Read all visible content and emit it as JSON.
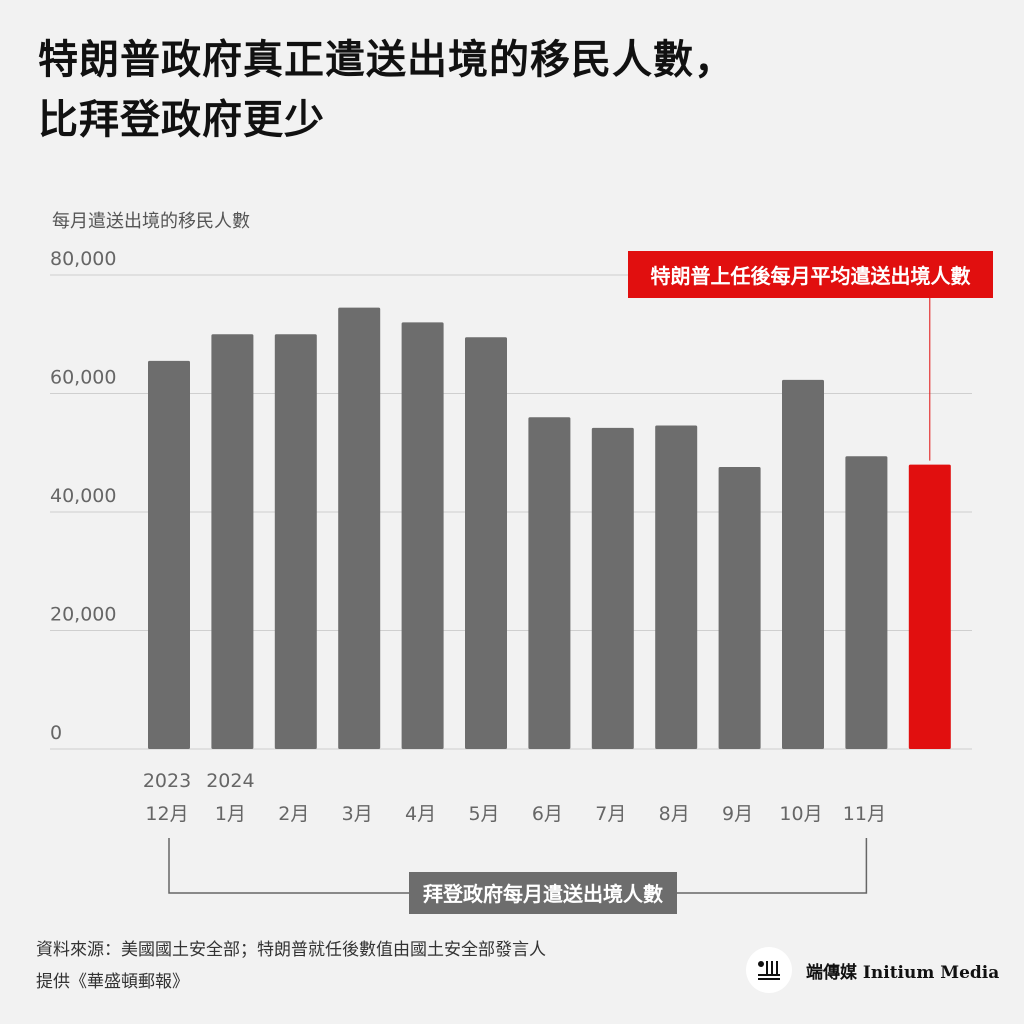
{
  "title": {
    "line1": "特朗普政府真正遣送出境的移民人數，",
    "line2": "比拜登政府更少"
  },
  "chart_data": {
    "type": "bar",
    "ylabel": "每月遣送出境的移民人數",
    "ylim": [
      0,
      80000
    ],
    "yticks": [
      0,
      20000,
      40000,
      60000,
      80000
    ],
    "ytick_labels": [
      "0",
      "20,000",
      "40,000",
      "60,000",
      "80,000"
    ],
    "grid": true,
    "categories": [
      {
        "year": "2023",
        "month": "12月"
      },
      {
        "year": "2024",
        "month": "1月"
      },
      {
        "year": "",
        "month": "2月"
      },
      {
        "year": "",
        "month": "3月"
      },
      {
        "year": "",
        "month": "4月"
      },
      {
        "year": "",
        "month": "5月"
      },
      {
        "year": "",
        "month": "6月"
      },
      {
        "year": "",
        "month": "7月"
      },
      {
        "year": "",
        "month": "8月"
      },
      {
        "year": "",
        "month": "9月"
      },
      {
        "year": "",
        "month": "10月"
      },
      {
        "year": "",
        "month": "11月"
      },
      {
        "year": "",
        "month": ""
      }
    ],
    "values": [
      65500,
      70000,
      70000,
      74500,
      72000,
      69500,
      56000,
      54200,
      54600,
      47600,
      62300,
      49400,
      48000
    ],
    "colors": {
      "biden": "#6d6d6d",
      "trump": "#e10f0f",
      "grid": "#cfcfcf",
      "axis_text": "#666666",
      "bracket": "#666666"
    },
    "highlight_index": 12,
    "annotations": {
      "trump_label": "特朗普上任後每月平均遣送出境人數",
      "biden_bracket_label": "拜登政府每月遣送出境人數"
    }
  },
  "source": {
    "line1": "資料來源：美國國土安全部；特朗普就任後數值由國土安全部發言人",
    "line2": "提供《華盛頓郵報》"
  },
  "brand": {
    "name": "端傳媒 Initium Media",
    "logo_icon": "initium-logo-icon"
  }
}
